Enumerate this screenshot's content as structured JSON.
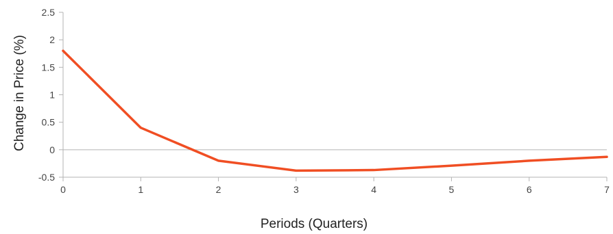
{
  "chart_data": {
    "type": "line",
    "xlabel": "Periods (Quarters)",
    "ylabel": "Change in Price (%)",
    "x": [
      0,
      1,
      2,
      3,
      4,
      5,
      6,
      7
    ],
    "series": [
      {
        "values": [
          1.8,
          0.4,
          -0.2,
          -0.38,
          -0.37,
          -0.29,
          -0.2,
          -0.13
        ]
      }
    ],
    "xlim": [
      0,
      7
    ],
    "ylim": [
      -0.5,
      2.5
    ],
    "x_ticks": [
      "0",
      "1",
      "2",
      "3",
      "4",
      "5",
      "6",
      "7"
    ],
    "y_ticks": [
      "2.5",
      "2",
      "1.5",
      "1",
      "0.5",
      "0",
      "-0.5"
    ],
    "y_tick_values": [
      2.5,
      2,
      1.5,
      1,
      0.5,
      0,
      -0.5
    ],
    "grid": false,
    "legend": "none",
    "zero_line": true,
    "colors": {
      "line": "#f04e23",
      "axis": "#b3b3b3",
      "tick_text": "#444444"
    }
  }
}
